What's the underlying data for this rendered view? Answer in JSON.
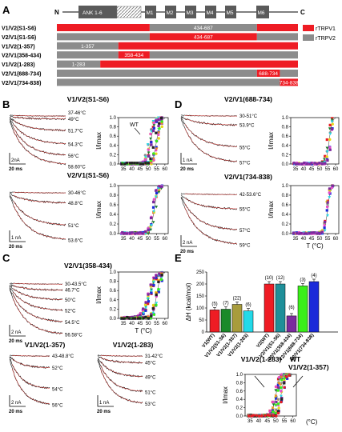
{
  "panels": {
    "A": "A",
    "B": "B",
    "C": "C",
    "D": "D",
    "E": "E"
  },
  "topology": {
    "n_label": "N",
    "c_label": "C",
    "domains": [
      "ANK 1-6",
      "M1",
      "M2",
      "M3",
      "M4",
      "M5",
      "M6"
    ]
  },
  "constructs": [
    {
      "name": "V1/V2(S1-S6)",
      "segments": [
        {
          "from": 0,
          "to": 0.385,
          "color": "red",
          "label": ""
        },
        {
          "from": 0.385,
          "to": 0.83,
          "color": "gray",
          "label": "434-687"
        },
        {
          "from": 0.83,
          "to": 1,
          "color": "red",
          "label": ""
        }
      ]
    },
    {
      "name": "V2/V1(S1-S6)",
      "segments": [
        {
          "from": 0,
          "to": 0.385,
          "color": "gray",
          "label": ""
        },
        {
          "from": 0.385,
          "to": 0.83,
          "color": "red",
          "label": "434-687"
        },
        {
          "from": 0.83,
          "to": 1,
          "color": "gray",
          "label": ""
        }
      ]
    },
    {
      "name": "V1/V2(1-357)",
      "segments": [
        {
          "from": 0,
          "to": 0.255,
          "color": "gray",
          "label": "1-357"
        },
        {
          "from": 0.255,
          "to": 1,
          "color": "red",
          "label": ""
        }
      ]
    },
    {
      "name": "V2/V1(358-434)",
      "segments": [
        {
          "from": 0,
          "to": 0.255,
          "color": "gray",
          "label": ""
        },
        {
          "from": 0.255,
          "to": 0.385,
          "color": "red",
          "label": "358-434"
        },
        {
          "from": 0.385,
          "to": 1,
          "color": "gray",
          "label": ""
        }
      ]
    },
    {
      "name": "V1/V2(1-283)",
      "segments": [
        {
          "from": 0,
          "to": 0.18,
          "color": "gray",
          "label": "1-283"
        },
        {
          "from": 0.18,
          "to": 1,
          "color": "red",
          "label": ""
        }
      ]
    },
    {
      "name": "V2/V1(688-734)",
      "segments": [
        {
          "from": 0,
          "to": 0.83,
          "color": "gray",
          "label": ""
        },
        {
          "from": 0.83,
          "to": 0.925,
          "color": "red",
          "label": "688-734"
        },
        {
          "from": 0.925,
          "to": 1,
          "color": "gray",
          "label": ""
        }
      ]
    },
    {
      "name": "V2/V1(734-838)",
      "segments": [
        {
          "from": 0,
          "to": 0.925,
          "color": "gray",
          "label": ""
        },
        {
          "from": 0.925,
          "to": 1,
          "color": "red",
          "label": "734-838"
        }
      ]
    }
  ],
  "legend": [
    {
      "label": "rTRPV1",
      "color": "red"
    },
    {
      "label": "rTRPV2",
      "color": "gray"
    }
  ],
  "colors": {
    "red": "#ee1c24",
    "gray": "#8c8c8c"
  },
  "traces": {
    "B1": {
      "title": "V1/V2(S1-S6)",
      "temps": [
        "37-46°C",
        "49°C",
        "51.7°C",
        "54.3°C",
        "56°C",
        "58.60°C"
      ],
      "scale_i": "2nA",
      "scale_t": "20 ms"
    },
    "B2": {
      "title": "V2/V1(S1-S6)",
      "temps": [
        "30-46°C",
        "48.8°C",
        "51°C",
        "53.6°C"
      ],
      "scale_i": "1 nA",
      "scale_t": "20 ms"
    },
    "C1": {
      "title": "V2/V1(358-434)",
      "temps": [
        "30-43.5°C",
        "46.7°C",
        "50°C",
        "52°C",
        "54.5°C",
        "56.58°C"
      ],
      "scale_i": "2 nA",
      "scale_t": "20 ms"
    },
    "C2": {
      "title": "V1/V2(1-357)",
      "temps": [
        "43-48.8°C",
        "52°C",
        "54°C",
        "56°C"
      ],
      "scale_i": "2 nA",
      "scale_t": "20 ms"
    },
    "C3": {
      "title": "V1/V2(1-283)",
      "temps": [
        "31-42°C",
        "45°C",
        "49°C",
        "51°C",
        "53°C"
      ],
      "scale_i": "1 nA",
      "scale_t": "20 ms"
    },
    "D1": {
      "title": "V2/V1(688-734)",
      "temps": [
        "30-51°C",
        "53.9°C",
        "55°C",
        "57°C"
      ],
      "scale_i": "1 nA",
      "scale_t": "20 ms"
    },
    "D2": {
      "title": "V2/V1(734-838)",
      "temps": [
        "42-53.6°C",
        "55°C",
        "57°C",
        "59°C"
      ],
      "scale_i": "2 nA",
      "scale_t": "20 ms"
    }
  },
  "curves": {
    "ylabel": "I/Imax",
    "xlabel": "T (°C)",
    "xlabel_E": "(°C)",
    "xticks": [
      "35",
      "40",
      "45",
      "50",
      "55",
      "60"
    ],
    "yticks": [
      "0.0",
      "0.2",
      "0.4",
      "0.6",
      "0.8",
      "1.0"
    ],
    "wt_label": "WT",
    "E_labels": [
      "V1/V2(1-283)",
      "WT",
      "V1/V2(1-357)"
    ]
  },
  "chart_data": {
    "type": "bar",
    "title": "",
    "ylabel": "ΔH (kcal/mol)",
    "ylim": [
      0,
      250
    ],
    "yticks": [
      "0",
      "50",
      "100",
      "150",
      "200",
      "250"
    ],
    "categories": [
      "V1(WT)",
      "V1/V2(S1-S6)",
      "V1/V2(1-357)",
      "V1/V2(1-283)",
      "V2(WT)",
      "V2/V1(S1-S6)",
      "V2/V1(358-434)",
      "V2/V1(688-734)",
      "V2/V1(734-838)"
    ],
    "values": [
      92,
      95,
      115,
      88,
      200,
      200,
      67,
      192,
      210
    ],
    "n_labels": [
      "(5)",
      "(7)",
      "(22)",
      "(6)",
      "(10)",
      "(12)",
      "(6)",
      "(3)",
      "(4)"
    ],
    "bar_colors": [
      "#ee1c24",
      "#1a8a2a",
      "#a89c3c",
      "#23d9e8",
      "#ee1c24",
      "#1f8f99",
      "#7b2a9e",
      "#3aee1a",
      "#1a2ad9"
    ]
  }
}
